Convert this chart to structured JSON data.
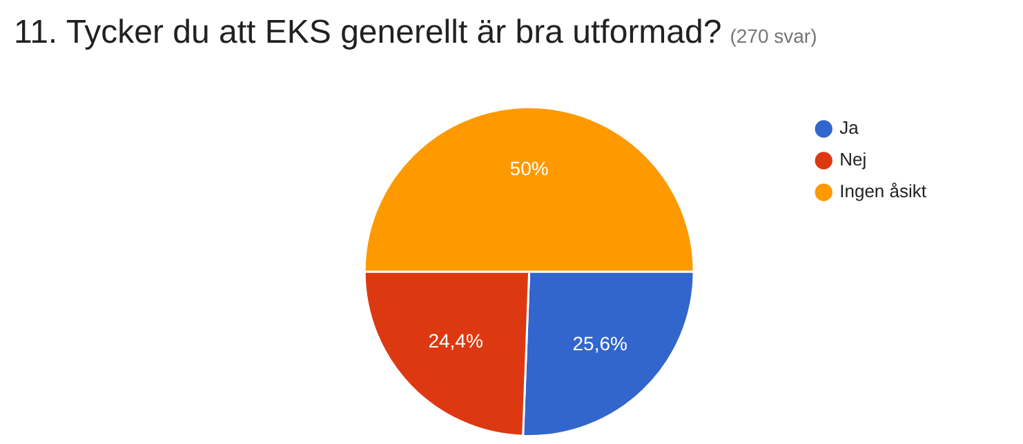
{
  "chart_data": {
    "type": "pie",
    "title": "11. Tycker du att EKS generellt är bra utformad?",
    "subtitle": "(270 svar)",
    "categories": [
      "Ja",
      "Nej",
      "Ingen åsikt"
    ],
    "values": [
      25.6,
      24.4,
      50
    ],
    "colors": [
      "#3366cc",
      "#dc3912",
      "#ff9900"
    ],
    "value_labels": [
      "25,6%",
      "24,4%",
      "50%"
    ],
    "legend": "top right"
  }
}
